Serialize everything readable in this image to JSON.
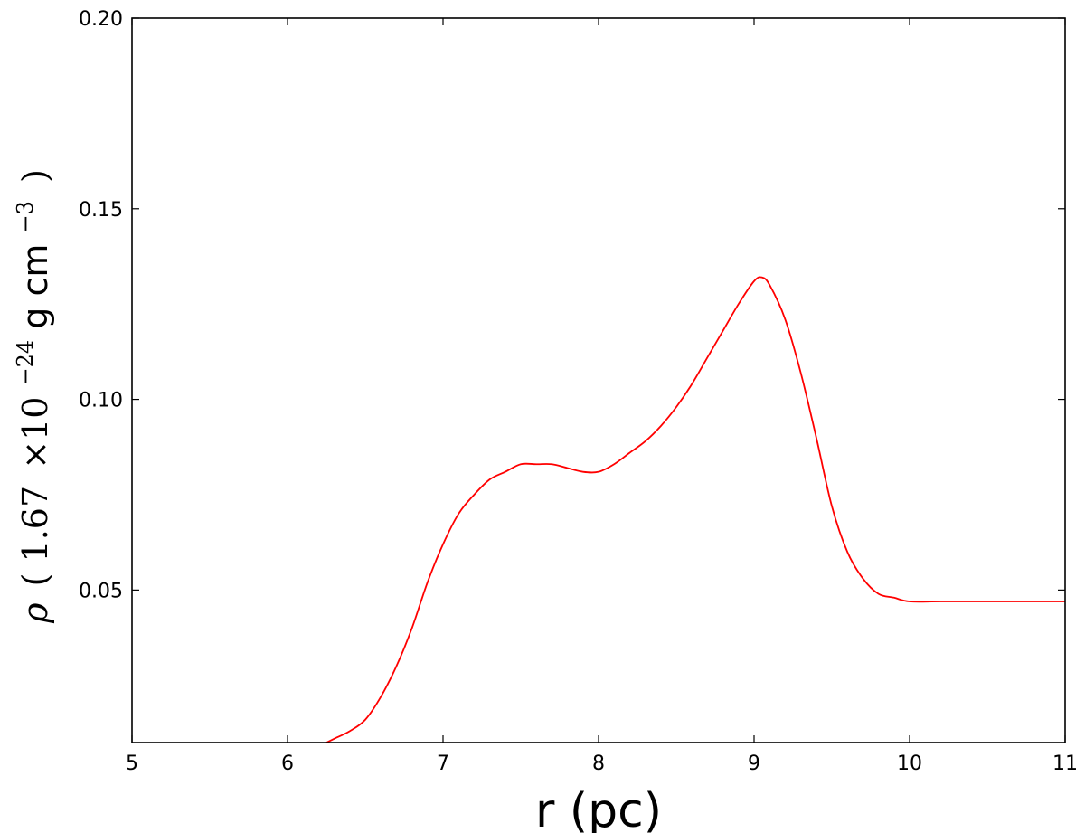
{
  "chart_data": {
    "type": "line",
    "xlabel": "r (pc)",
    "ylabel": {
      "symbol": "ρ",
      "open": "(",
      "coef": "1.67",
      "times": "×10",
      "exp1": "−24",
      "unit1": "g cm",
      "exp2": "−3",
      "close": ")"
    },
    "xlim": [
      5,
      11
    ],
    "ylim": [
      0.01,
      0.2
    ],
    "xticks": [
      5,
      6,
      7,
      8,
      9,
      10,
      11
    ],
    "xtick_labels": [
      "5",
      "6",
      "7",
      "8",
      "9",
      "10",
      "11"
    ],
    "yticks": [
      0.05,
      0.1,
      0.15,
      0.2
    ],
    "ytick_labels": [
      "0.05",
      "0.10",
      "0.15",
      "0.20"
    ],
    "grid": false,
    "series": [
      {
        "color": "#ff0000",
        "x": [
          6.25,
          6.3,
          6.4,
          6.5,
          6.6,
          6.7,
          6.8,
          6.9,
          7.0,
          7.1,
          7.2,
          7.3,
          7.4,
          7.5,
          7.6,
          7.7,
          7.8,
          7.9,
          8.0,
          8.1,
          8.2,
          8.3,
          8.4,
          8.5,
          8.6,
          8.7,
          8.8,
          8.9,
          9.0,
          9.05,
          9.1,
          9.2,
          9.3,
          9.4,
          9.5,
          9.6,
          9.7,
          9.8,
          9.9,
          10.0,
          10.2,
          10.5,
          11.0
        ],
        "y": [
          0.01,
          0.011,
          0.013,
          0.016,
          0.022,
          0.03,
          0.04,
          0.052,
          0.062,
          0.07,
          0.075,
          0.079,
          0.081,
          0.083,
          0.083,
          0.083,
          0.082,
          0.081,
          0.081,
          0.083,
          0.086,
          0.089,
          0.093,
          0.098,
          0.104,
          0.111,
          0.118,
          0.125,
          0.131,
          0.132,
          0.13,
          0.121,
          0.107,
          0.09,
          0.072,
          0.06,
          0.053,
          0.049,
          0.048,
          0.047,
          0.047,
          0.047,
          0.047
        ]
      }
    ]
  }
}
